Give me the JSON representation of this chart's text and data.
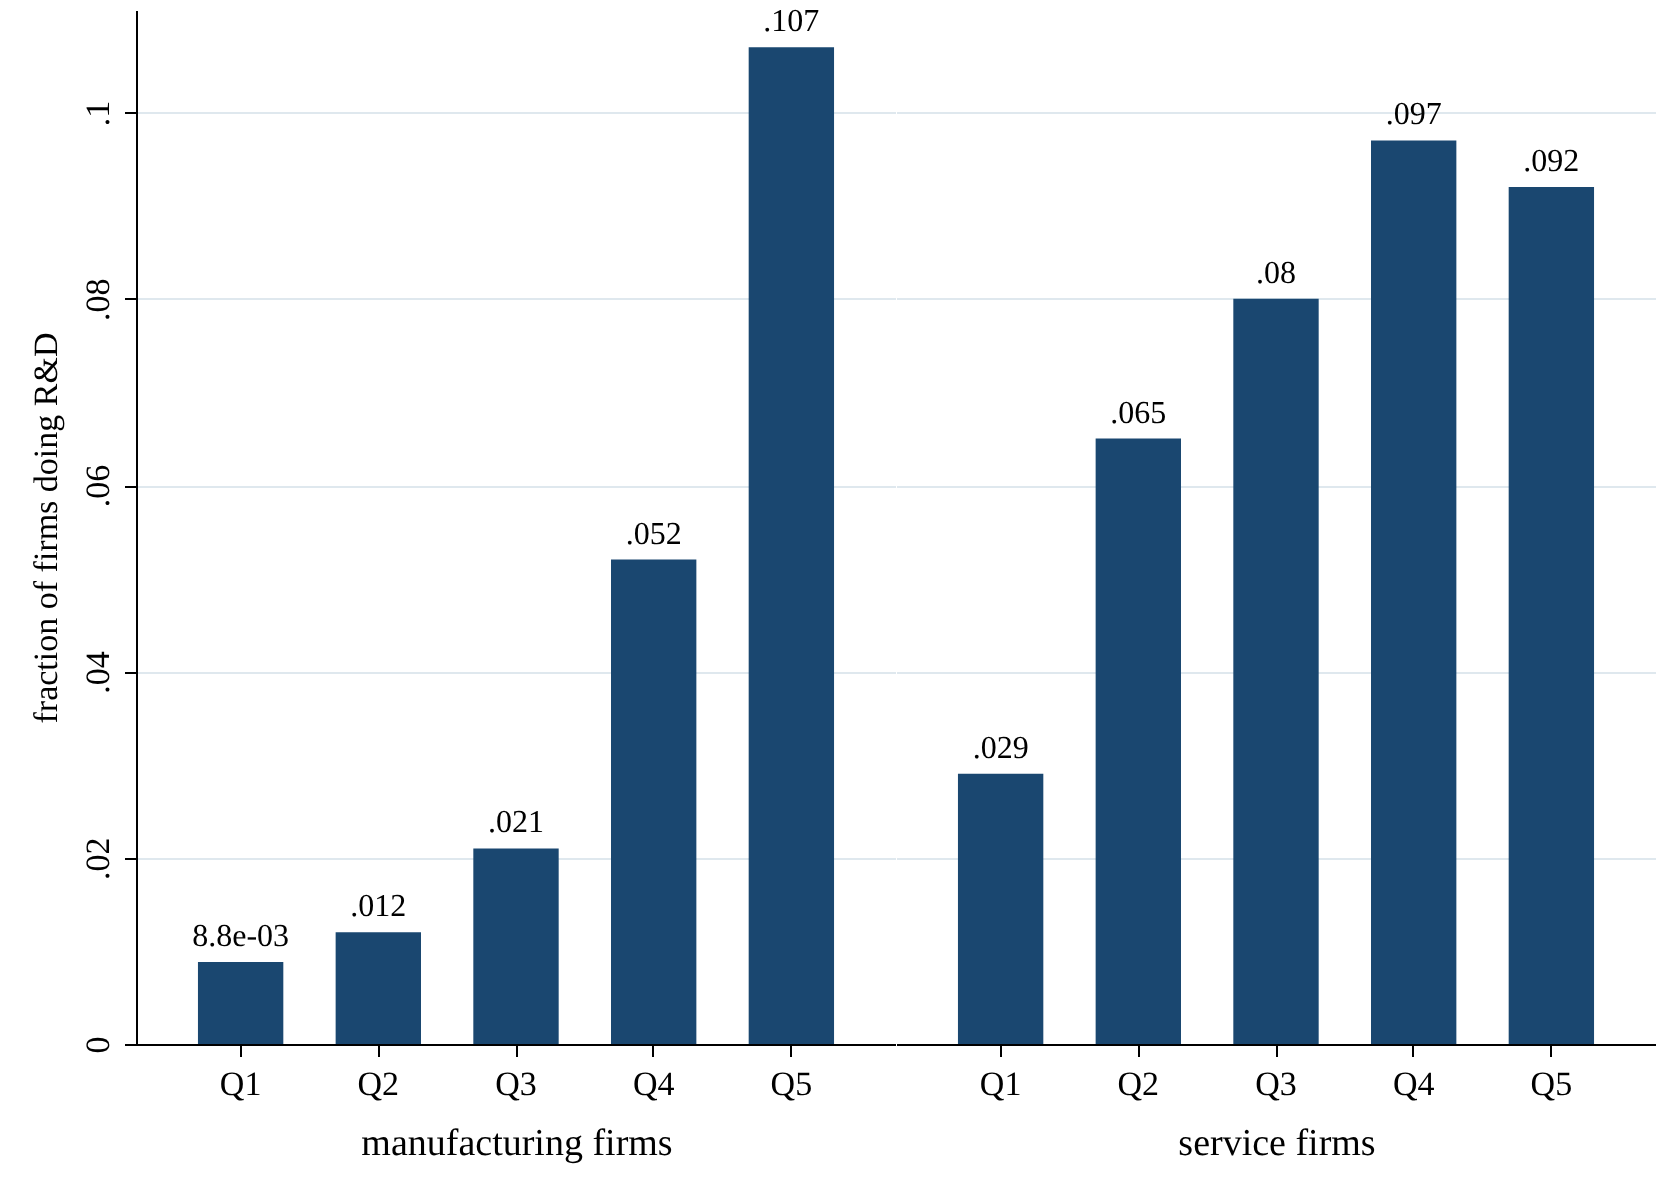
{
  "chart_data": [
    {
      "type": "bar",
      "categories": [
        "Q1",
        "Q2",
        "Q3",
        "Q4",
        "Q5"
      ],
      "values": [
        0.0088,
        0.012,
        0.021,
        0.052,
        0.107
      ],
      "value_labels": [
        "8.8e-03",
        ".012",
        ".021",
        ".052",
        ".107"
      ],
      "color": "#1a4770",
      "xlabel": "manufacturing firms",
      "ylabel": "fraction of firms doing R&D",
      "ylim": [
        0,
        0.111
      ],
      "yticks": [
        {
          "value": 0,
          "label": "0"
        },
        {
          "value": 0.02,
          "label": ".02"
        },
        {
          "value": 0.04,
          "label": ".04"
        },
        {
          "value": 0.06,
          "label": ".06"
        },
        {
          "value": 0.08,
          "label": ".08"
        },
        {
          "value": 0.1,
          "label": ".1"
        }
      ],
      "grid": "y"
    },
    {
      "type": "bar",
      "categories": [
        "Q1",
        "Q2",
        "Q3",
        "Q4",
        "Q5"
      ],
      "values": [
        0.029,
        0.065,
        0.08,
        0.097,
        0.092
      ],
      "value_labels": [
        ".029",
        ".065",
        ".08",
        ".097",
        ".092"
      ],
      "color": "#1a4770",
      "xlabel": "service firms",
      "ylim": [
        0,
        0.111
      ],
      "yticks": [
        0,
        0.02,
        0.04,
        0.06,
        0.08,
        0.1
      ],
      "grid": "y",
      "tick_labels": "x"
    }
  ]
}
